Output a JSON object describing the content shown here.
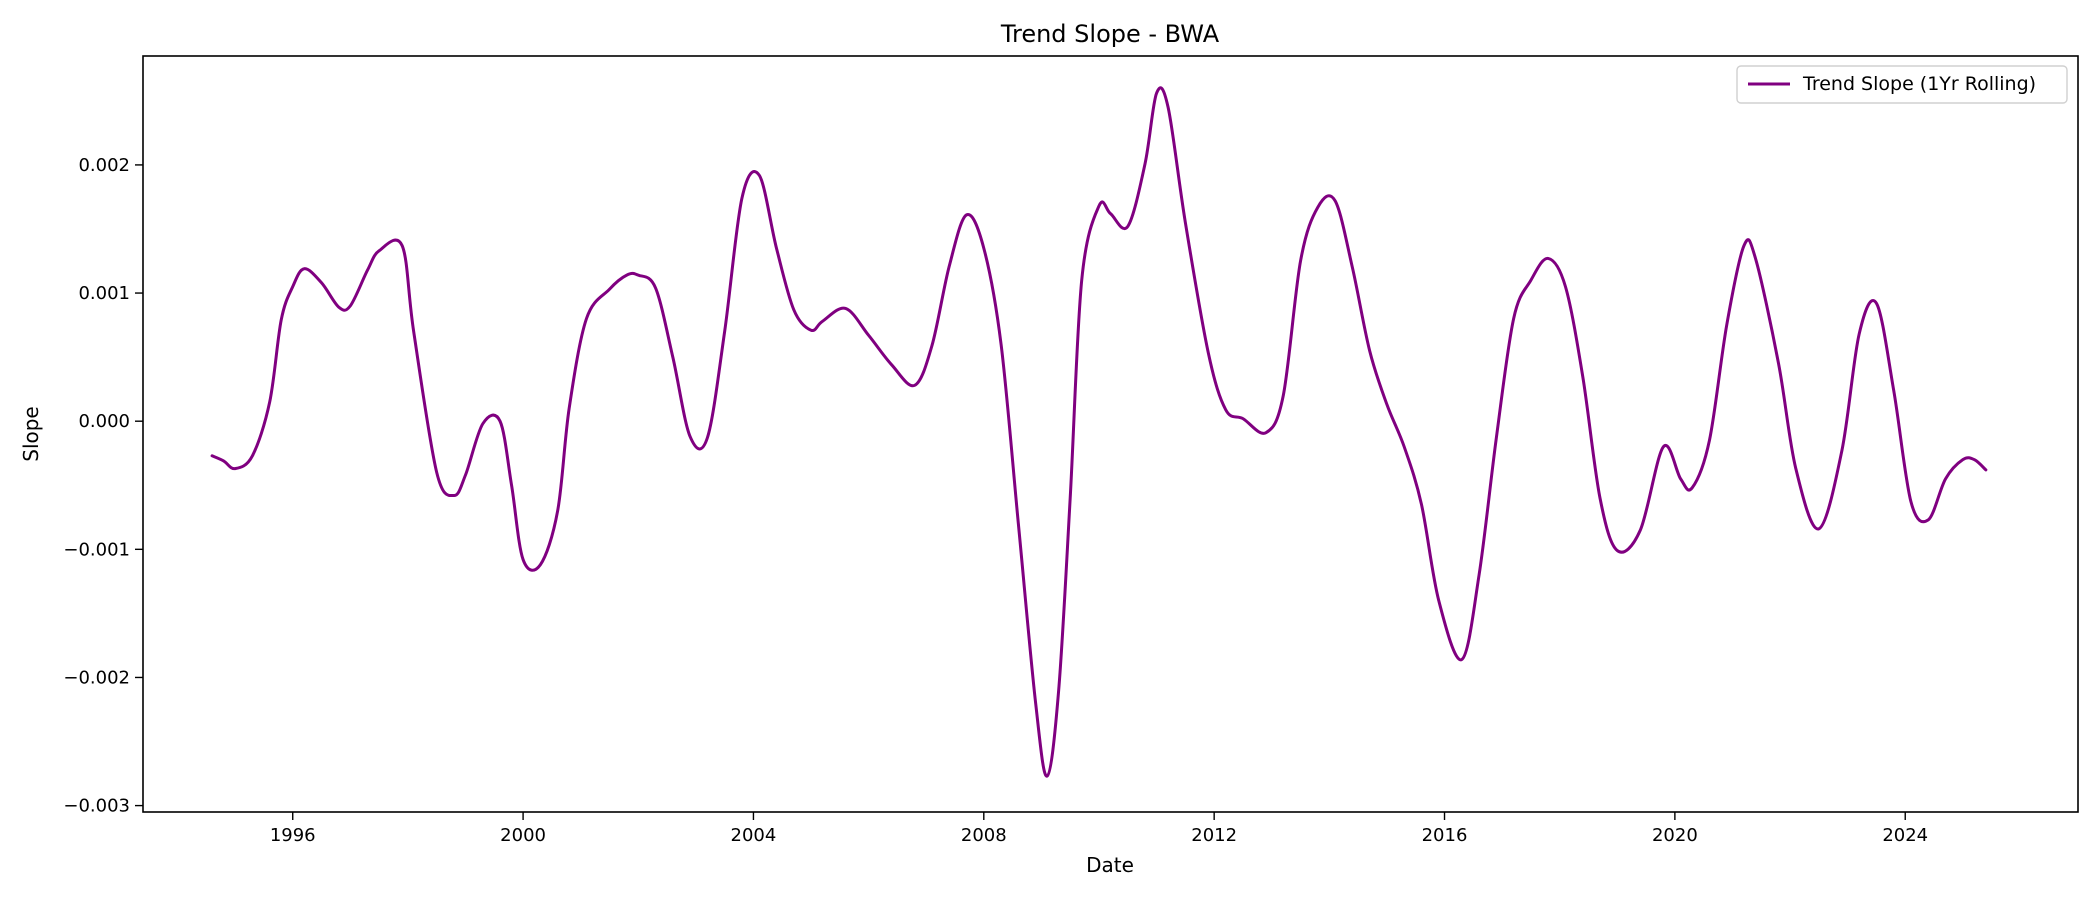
{
  "chart_data": {
    "type": "line",
    "title": "Trend Slope - BWA",
    "xlabel": "Date",
    "ylabel": "Slope",
    "xlim": [
      1993.4,
      2027.0
    ],
    "ylim": [
      -0.00305,
      0.00285
    ],
    "x_ticks": [
      1996,
      2000,
      2004,
      2008,
      2012,
      2016,
      2020,
      2024
    ],
    "x_tick_labels": [
      "1996",
      "2000",
      "2004",
      "2008",
      "2012",
      "2016",
      "2020",
      "2024"
    ],
    "y_ticks": [
      -0.003,
      -0.002,
      -0.001,
      0.0,
      0.001,
      0.002
    ],
    "y_tick_labels": [
      "−0.003",
      "−0.002",
      "−0.001",
      "0.000",
      "0.001",
      "0.002"
    ],
    "grid": false,
    "legend_position": "top-right",
    "series": [
      {
        "name": "Trend Slope (1Yr Rolling)",
        "color": "#800080",
        "x": [
          1994.6,
          1994.8,
          1995.0,
          1995.3,
          1995.6,
          1995.8,
          1996.0,
          1996.2,
          1996.5,
          1996.8,
          1997.0,
          1997.3,
          1997.5,
          1997.9,
          1998.1,
          1998.5,
          1998.8,
          1999.0,
          1999.3,
          1999.6,
          1999.8,
          2000.0,
          2000.3,
          2000.6,
          2000.8,
          2001.1,
          2001.5,
          2001.8,
          2002.0,
          2002.3,
          2002.6,
          2002.9,
          2003.2,
          2003.5,
          2003.8,
          2004.1,
          2004.4,
          2004.7,
          2005.0,
          2005.2,
          2005.6,
          2006.0,
          2006.4,
          2006.8,
          2007.1,
          2007.4,
          2007.7,
          2008.0,
          2008.3,
          2008.6,
          2008.9,
          2009.1,
          2009.3,
          2009.5,
          2009.7,
          2010.0,
          2010.2,
          2010.5,
          2010.8,
          2011.0,
          2011.2,
          2011.5,
          2011.9,
          2012.2,
          2012.5,
          2012.9,
          2013.2,
          2013.5,
          2013.8,
          2014.1,
          2014.4,
          2014.7,
          2015.0,
          2015.3,
          2015.6,
          2015.9,
          2016.3,
          2016.6,
          2016.9,
          2017.2,
          2017.5,
          2017.8,
          2018.1,
          2018.4,
          2018.7,
          2019.0,
          2019.4,
          2019.8,
          2020.1,
          2020.3,
          2020.6,
          2020.9,
          2021.2,
          2021.4,
          2021.8,
          2022.1,
          2022.5,
          2022.9,
          2023.2,
          2023.5,
          2023.8,
          2024.1,
          2024.4,
          2024.7,
          2025.0,
          2025.2,
          2025.4
        ],
        "y": [
          -0.00027,
          -0.00031,
          -0.00037,
          -0.00027,
          0.00015,
          0.00079,
          0.00105,
          0.00119,
          0.00108,
          0.00089,
          0.0009,
          0.00118,
          0.00133,
          0.00137,
          0.0007,
          -0.0004,
          -0.00058,
          -0.00042,
          -2e-05,
          0.0,
          -0.0005,
          -0.00108,
          -0.00112,
          -0.0007,
          0.0001,
          0.0008,
          0.00103,
          0.00114,
          0.00114,
          0.00104,
          0.0005,
          -0.00012,
          -0.00013,
          0.0007,
          0.00174,
          0.00192,
          0.00135,
          0.00087,
          0.00071,
          0.00078,
          0.00088,
          0.00067,
          0.00044,
          0.00028,
          0.00059,
          0.00121,
          0.00161,
          0.00135,
          0.0006,
          -0.0008,
          -0.0022,
          -0.00277,
          -0.0021,
          -0.0006,
          0.0011,
          0.00168,
          0.00162,
          0.00152,
          0.00201,
          0.00256,
          0.00245,
          0.00155,
          0.00053,
          9e-05,
          2e-05,
          -9e-05,
          0.0002,
          0.00125,
          0.00167,
          0.00172,
          0.0012,
          0.00055,
          0.00013,
          -0.0002,
          -0.00065,
          -0.0014,
          -0.00186,
          -0.0012,
          -0.00013,
          0.0008,
          0.0011,
          0.00127,
          0.00105,
          0.00035,
          -0.0006,
          -0.00101,
          -0.00085,
          -0.0002,
          -0.00045,
          -0.00052,
          -0.00015,
          0.00075,
          0.00137,
          0.00127,
          0.00045,
          -0.00037,
          -0.00084,
          -0.00023,
          0.00068,
          0.00092,
          0.00024,
          -0.00063,
          -0.00077,
          -0.00045,
          -0.0003,
          -0.0003,
          -0.00038
        ]
      }
    ]
  }
}
